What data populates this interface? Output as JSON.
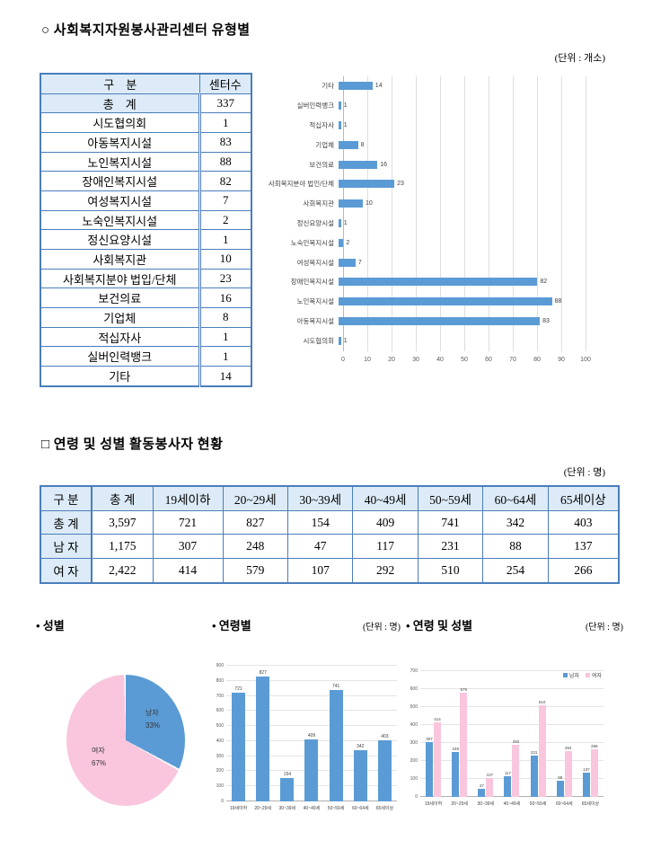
{
  "section1": {
    "title": "○ 사회복지자원봉사관리센터 유형별",
    "unit": "(단위 : 개소)",
    "table": {
      "headers": [
        "구    분",
        "센터수"
      ],
      "rows": [
        {
          "label": "총    계",
          "value": "337",
          "highlight": true
        },
        {
          "label": "시도협의회",
          "value": "1"
        },
        {
          "label": "아동복지시설",
          "value": "83"
        },
        {
          "label": "노인복지시설",
          "value": "88"
        },
        {
          "label": "장애인복지시설",
          "value": "82"
        },
        {
          "label": "여성복지시설",
          "value": "7"
        },
        {
          "label": "노숙인복지시설",
          "value": "2"
        },
        {
          "label": "정신요양시설",
          "value": "1"
        },
        {
          "label": "사회복지관",
          "value": "10"
        },
        {
          "label": "사회복지분야 법입/단체",
          "value": "23"
        },
        {
          "label": "보건의료",
          "value": "16"
        },
        {
          "label": "기업체",
          "value": "8"
        },
        {
          "label": "적십자사",
          "value": "1"
        },
        {
          "label": "실버인력뱅크",
          "value": "1"
        },
        {
          "label": "기타",
          "value": "14"
        }
      ]
    }
  },
  "section2": {
    "title": "□ 연령 및 성별 활동봉사자 현황",
    "unit": "(단위 : 명)",
    "table": {
      "headers": [
        "구 분",
        "총 계",
        "19세이하",
        "20~29세",
        "30~39세",
        "40~49세",
        "50~59세",
        "60~64세",
        "65세이상"
      ],
      "rows": [
        [
          "총 계",
          "3,597",
          "721",
          "827",
          "154",
          "409",
          "741",
          "342",
          "403"
        ],
        [
          "남 자",
          "1,175",
          "307",
          "248",
          "47",
          "117",
          "231",
          "88",
          "137"
        ],
        [
          "여 자",
          "2,422",
          "414",
          "579",
          "107",
          "292",
          "510",
          "254",
          "266"
        ]
      ]
    }
  },
  "section3": {
    "pie_title": "• 성별",
    "age_title": "• 연령별",
    "age_unit": "(단위 : 명)",
    "agegender_title": "• 연령 및 성별",
    "agegender_unit": "(단위 : 명)"
  },
  "chart_data": [
    {
      "id": "center-types",
      "type": "bar",
      "orientation": "horizontal",
      "categories_top_to_bottom": [
        "기타",
        "실버인력뱅크",
        "적십자사",
        "기업체",
        "보건의료",
        "사회복지분야 법인/단체",
        "사회복지관",
        "정신요양시설",
        "노숙인복지시설",
        "여성복지시설",
        "장애인복지시설",
        "노인복지시설",
        "아동복지시설",
        "시도협의회"
      ],
      "values": [
        14,
        1,
        1,
        8,
        16,
        23,
        10,
        1,
        2,
        7,
        82,
        88,
        83,
        1
      ],
      "xlim": [
        0,
        100
      ],
      "xtick_step": 10,
      "bar_color": "#5b9bd5",
      "grid": true,
      "legend_position": "none"
    },
    {
      "id": "gender-pie",
      "type": "pie",
      "title": "성별",
      "labels": [
        "남자",
        "여자"
      ],
      "values_percent": [
        33,
        67
      ],
      "colors": [
        "#5b9bd5",
        "#f9c6de"
      ]
    },
    {
      "id": "volunteers-by-age",
      "type": "bar",
      "title": "연령별",
      "categories": [
        "19세이하",
        "20~29세",
        "30~39세",
        "40~49세",
        "50~59세",
        "60~64세",
        "65세이상"
      ],
      "values": [
        721,
        827,
        154,
        409,
        741,
        342,
        403
      ],
      "ylim": [
        0,
        900
      ],
      "ytick_step": 100,
      "bar_color": "#5b9bd5",
      "grid": true,
      "legend_position": "none"
    },
    {
      "id": "volunteers-by-age-gender",
      "type": "bar",
      "grouped": true,
      "title": "연령 및 성별",
      "categories": [
        "19세이하",
        "20~29세",
        "30~39세",
        "40~49세",
        "50~59세",
        "60~64세",
        "65세이상"
      ],
      "series": [
        {
          "name": "남자",
          "color": "#5b9bd5",
          "values": [
            307,
            248,
            47,
            117,
            231,
            88,
            137
          ]
        },
        {
          "name": "여자",
          "color": "#f9c6de",
          "values": [
            414,
            579,
            107,
            292,
            510,
            254,
            266
          ]
        }
      ],
      "ylim": [
        0,
        700
      ],
      "ytick_step": 100,
      "grid": true,
      "legend_position": "top-right"
    }
  ],
  "colors": {
    "bar_blue": "#5b9bd5",
    "pink": "#f9c6de",
    "table_border": "#4a7ebb",
    "table_header_bg": "#dcebf7",
    "grid_gray": "#e4e4e4"
  }
}
